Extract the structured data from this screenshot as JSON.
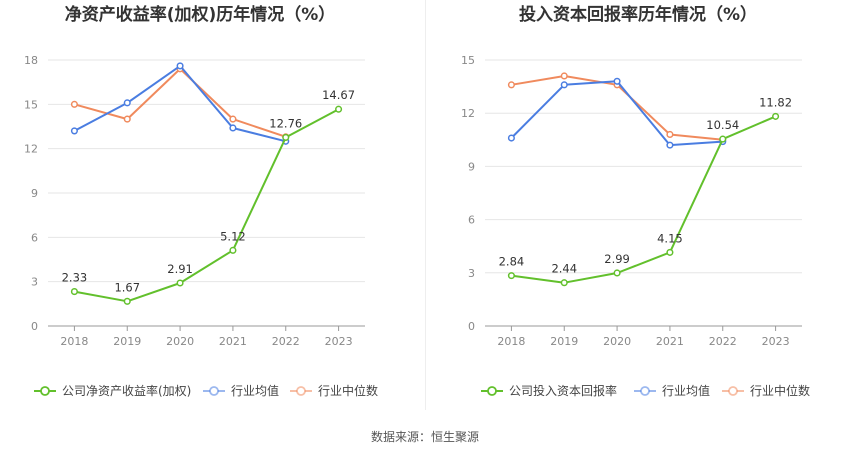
{
  "source_note": "数据来源：恒生聚源",
  "chart_data": [
    {
      "type": "line",
      "title": "净资产收益率(加权)历年情况（%）",
      "categories": [
        "2018",
        "2019",
        "2020",
        "2021",
        "2022",
        "2023"
      ],
      "ylim": [
        0,
        18
      ],
      "yticks": [
        0,
        3,
        6,
        9,
        12,
        15,
        18
      ],
      "ytick_labels": [
        "0",
        "3",
        "6",
        "9",
        "12",
        "15",
        "18"
      ],
      "grid": true,
      "legend_position": "bottom",
      "series": [
        {
          "name": "公司净资产收益率(加权)",
          "color": "#62c02c",
          "values": [
            2.33,
            1.67,
            2.91,
            5.12,
            12.76,
            14.67
          ],
          "labels": [
            "2.33",
            "1.67",
            "2.91",
            "5.12",
            "12.76",
            "14.67"
          ]
        },
        {
          "name": "行业均值",
          "color": "#4a7de1",
          "values": [
            13.2,
            15.1,
            17.6,
            13.4,
            12.5,
            null
          ]
        },
        {
          "name": "行业中位数",
          "color": "#f08a5d",
          "values": [
            15.0,
            14.0,
            17.4,
            14.0,
            12.8,
            null
          ]
        }
      ]
    },
    {
      "type": "line",
      "title": "投入资本回报率历年情况（%）",
      "categories": [
        "2018",
        "2019",
        "2020",
        "2021",
        "2022",
        "2023"
      ],
      "ylim": [
        0,
        15
      ],
      "yticks": [
        0,
        3,
        6,
        9,
        12,
        15
      ],
      "ytick_labels": [
        "0",
        "3",
        "6",
        "9",
        "12",
        "15"
      ],
      "grid": true,
      "legend_position": "bottom",
      "series": [
        {
          "name": "公司投入资本回报率",
          "color": "#62c02c",
          "values": [
            2.84,
            2.44,
            2.99,
            4.15,
            10.54,
            11.82
          ],
          "labels": [
            "2.84",
            "2.44",
            "2.99",
            "4.15",
            "10.54",
            "11.82"
          ]
        },
        {
          "name": "行业均值",
          "color": "#4a7de1",
          "values": [
            10.6,
            13.6,
            13.8,
            10.2,
            10.4,
            null
          ]
        },
        {
          "name": "行业中位数",
          "color": "#f08a5d",
          "values": [
            13.6,
            14.1,
            13.6,
            10.8,
            10.5,
            null
          ]
        }
      ]
    }
  ]
}
